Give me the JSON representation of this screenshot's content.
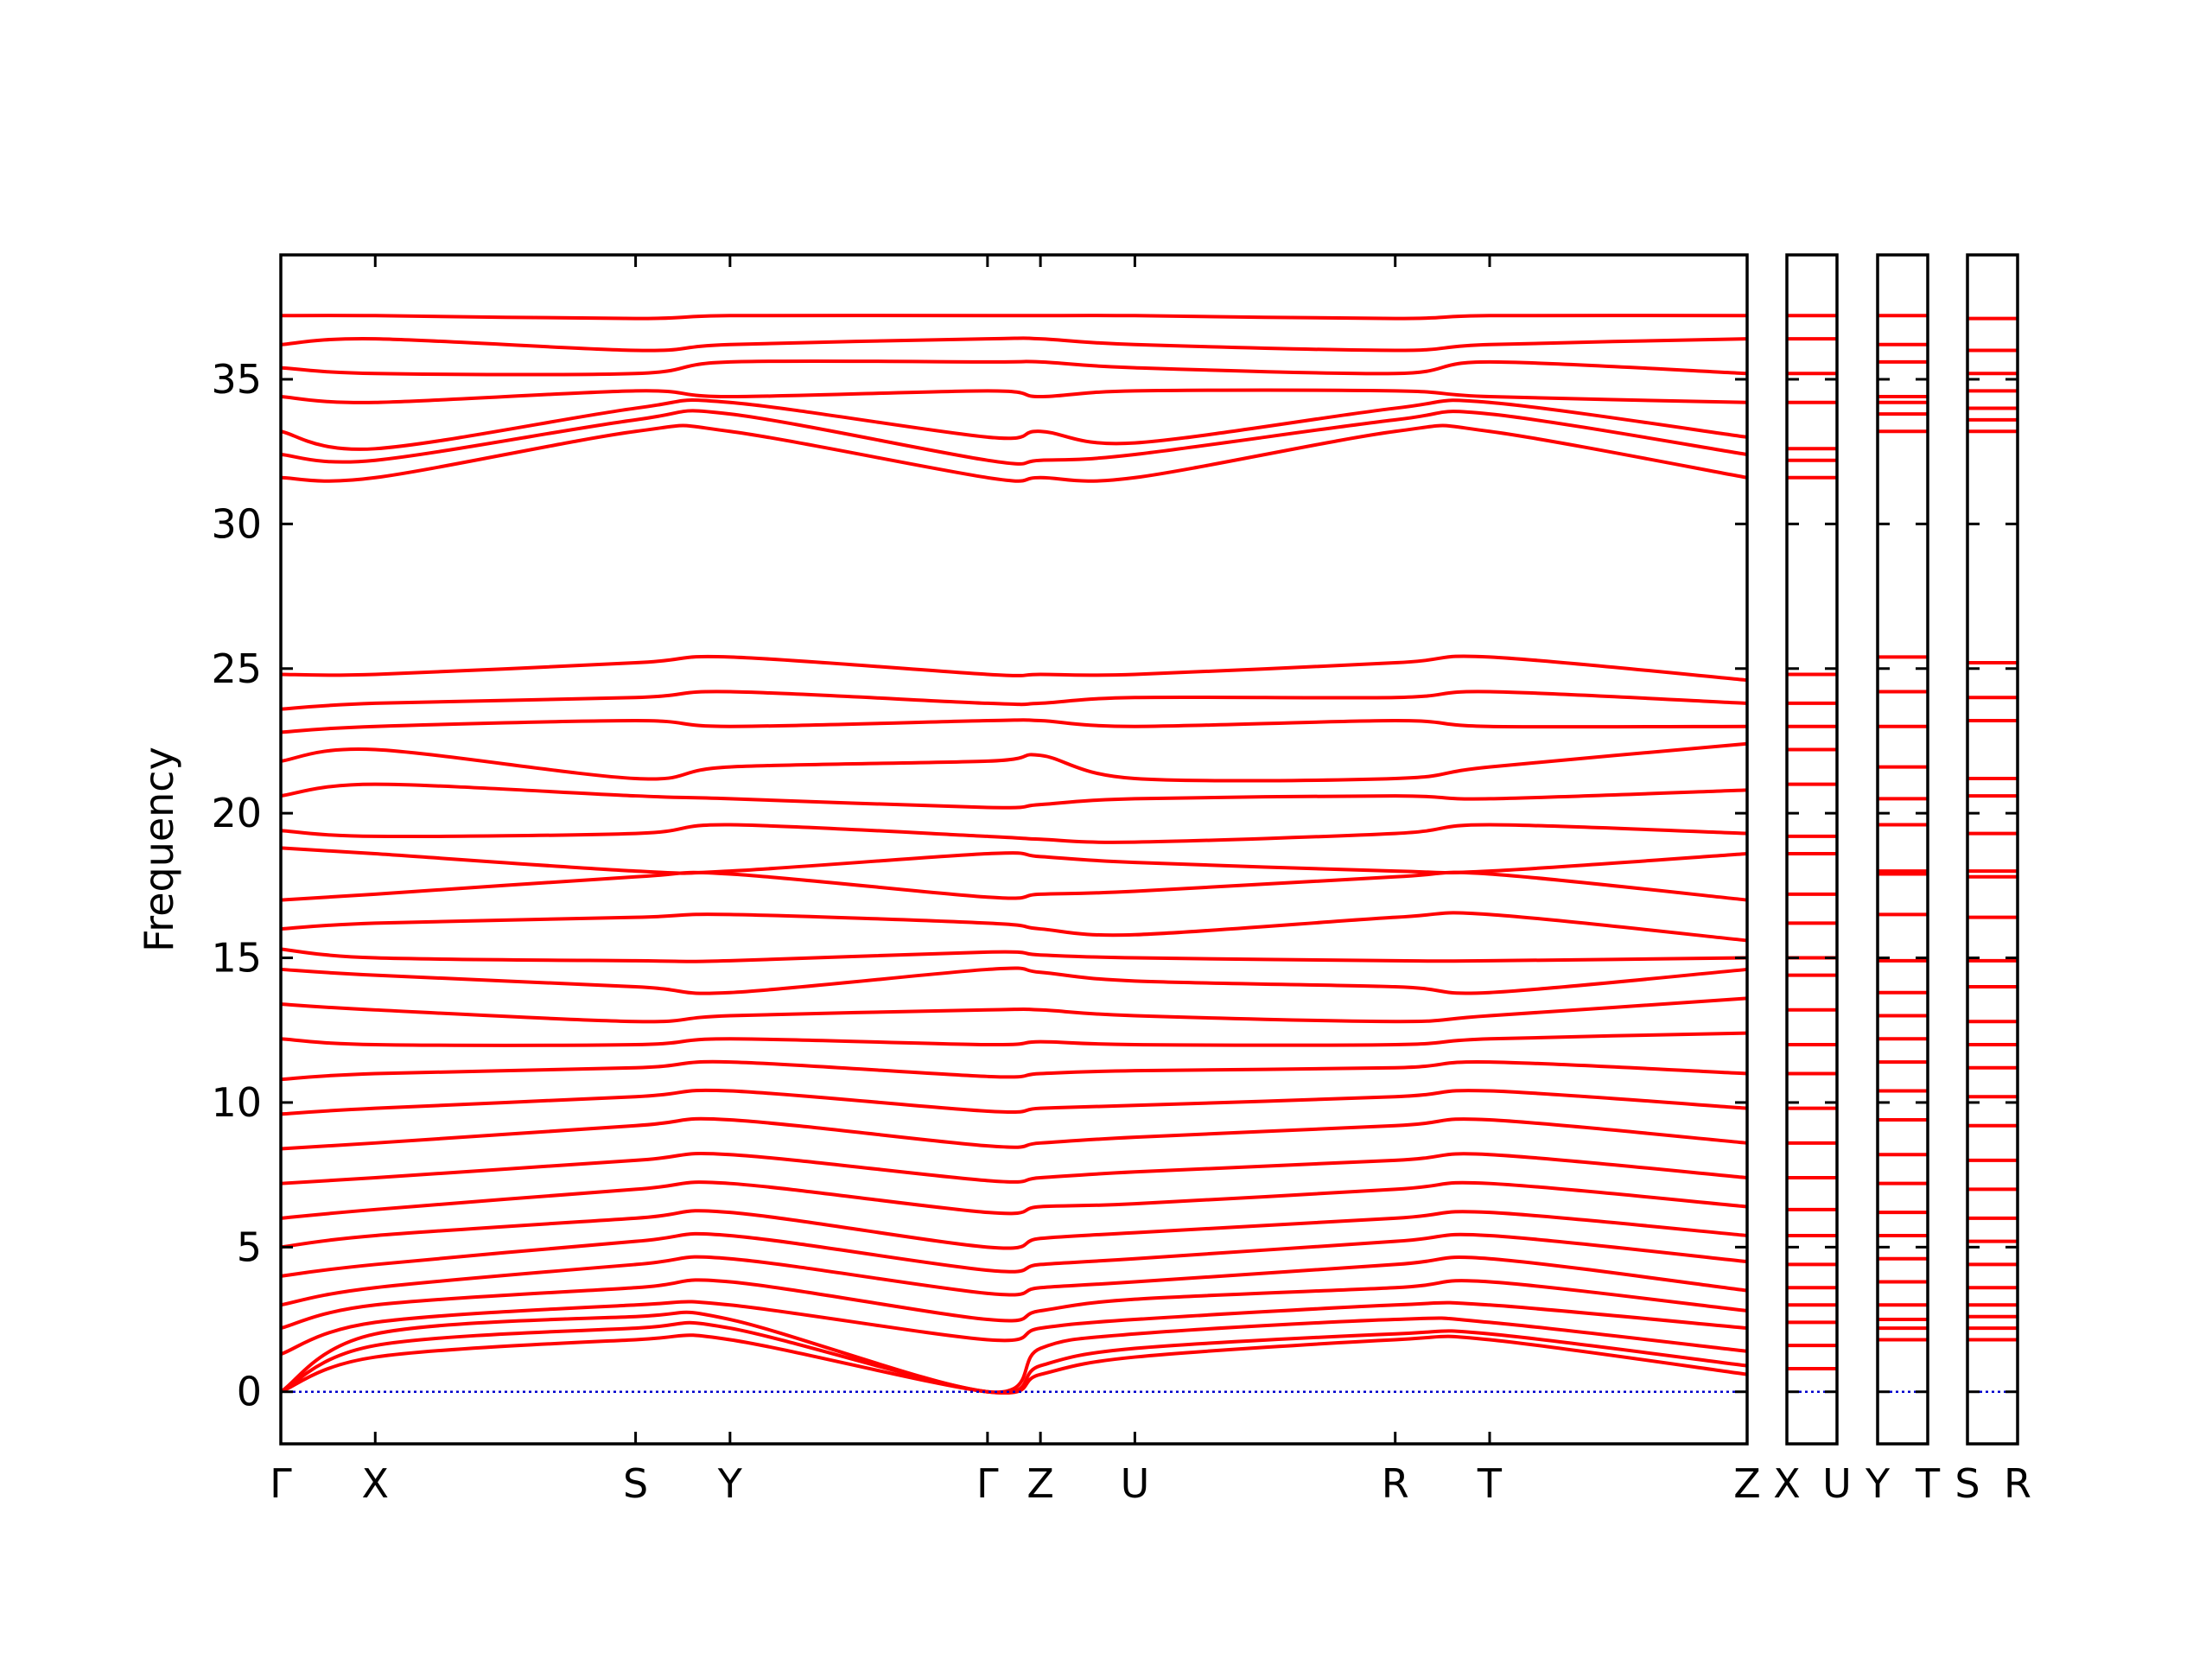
{
  "chart_data": [
    {
      "type": "line",
      "ylabel": "Frequency",
      "color": "#ff0000",
      "hline": 0,
      "hline_color": "#0000cc",
      "ylim": [
        -1.8,
        39.3
      ],
      "yticks": [
        0,
        5,
        10,
        15,
        20,
        25,
        30,
        35
      ],
      "xlim": [
        0,
        10.25
      ],
      "xticks": [
        {
          "value": 0,
          "label": "Γ"
        },
        {
          "value": 0.66,
          "label": "X"
        },
        {
          "value": 2.48,
          "label": "S"
        },
        {
          "value": 3.14,
          "label": "Y"
        },
        {
          "value": 4.94,
          "label": "Γ"
        },
        {
          "value": 5.31,
          "label": "Z"
        },
        {
          "value": 5.97,
          "label": "U"
        },
        {
          "value": 7.79,
          "label": "R"
        },
        {
          "value": 8.45,
          "label": "T"
        },
        {
          "value": 10.25,
          "label": "Z"
        }
      ],
      "x": [
        0,
        0.66,
        2.48,
        3.14,
        4.94,
        5.31,
        5.97,
        7.79,
        8.45,
        10.25
      ],
      "series": [
        {
          "values": [
            0,
            1.2,
            1.8,
            1.8,
            0,
            0.6,
            1.2,
            1.8,
            1.8,
            0.6
          ]
        },
        {
          "values": [
            0,
            1.6,
            2.2,
            2.2,
            0,
            0.9,
            1.5,
            2.0,
            2.0,
            0.9
          ]
        },
        {
          "values": [
            0,
            2.0,
            2.6,
            2.5,
            0,
            1.5,
            2.0,
            2.5,
            2.4,
            1.4
          ]
        },
        {
          "values": [
            1.3,
            2.4,
            3.0,
            3.0,
            1.8,
            2.2,
            2.5,
            3.0,
            3.0,
            2.2
          ]
        },
        {
          "values": [
            2.2,
            3.0,
            3.6,
            3.8,
            2.5,
            2.8,
            3.2,
            3.6,
            3.8,
            2.8
          ]
        },
        {
          "values": [
            3.0,
            3.6,
            4.4,
            4.6,
            3.4,
            3.6,
            3.8,
            4.4,
            4.6,
            3.5
          ]
        },
        {
          "values": [
            4.0,
            4.4,
            5.2,
            5.4,
            4.2,
            4.4,
            4.6,
            5.2,
            5.4,
            4.5
          ]
        },
        {
          "values": [
            5.0,
            5.4,
            6.0,
            6.2,
            5.0,
            5.3,
            5.5,
            6.0,
            6.2,
            5.4
          ]
        },
        {
          "values": [
            6.0,
            6.3,
            7.0,
            7.2,
            6.2,
            6.4,
            6.5,
            7.0,
            7.2,
            6.4
          ]
        },
        {
          "values": [
            7.2,
            7.4,
            8.0,
            8.2,
            7.3,
            7.4,
            7.6,
            8.0,
            8.2,
            7.4
          ]
        },
        {
          "values": [
            8.4,
            8.6,
            9.2,
            9.4,
            8.5,
            8.6,
            8.8,
            9.2,
            9.4,
            8.6
          ]
        },
        {
          "values": [
            9.6,
            9.8,
            10.2,
            10.4,
            9.7,
            9.8,
            9.9,
            10.2,
            10.4,
            9.8
          ]
        },
        {
          "values": [
            10.8,
            11.0,
            11.2,
            11.4,
            10.9,
            11.0,
            11.1,
            11.2,
            11.4,
            11.0
          ]
        },
        {
          "values": [
            12.2,
            12.0,
            12.0,
            12.2,
            12.0,
            12.1,
            12.0,
            12.0,
            12.2,
            12.4
          ]
        },
        {
          "values": [
            13.4,
            13.2,
            12.8,
            13.0,
            13.2,
            13.2,
            13.0,
            12.8,
            13.0,
            13.6
          ]
        },
        {
          "values": [
            14.6,
            14.4,
            14.0,
            13.8,
            14.6,
            14.5,
            14.2,
            14.0,
            13.8,
            14.6
          ]
        },
        {
          "values": [
            15.3,
            15.0,
            14.9,
            14.9,
            15.2,
            15.1,
            15.0,
            14.9,
            14.9,
            15.0
          ]
        },
        {
          "values": [
            16.0,
            16.2,
            16.4,
            16.5,
            16.2,
            16.0,
            15.8,
            16.4,
            16.5,
            15.6
          ]
        },
        {
          "values": [
            17.0,
            17.2,
            17.8,
            17.9,
            17.1,
            17.2,
            17.3,
            17.8,
            17.9,
            17.0
          ]
        },
        {
          "values": [
            18.8,
            18.6,
            18.0,
            18.0,
            18.6,
            18.5,
            18.3,
            18.0,
            18.0,
            18.6
          ]
        },
        {
          "values": [
            19.4,
            19.2,
            19.3,
            19.6,
            19.2,
            19.1,
            19.0,
            19.3,
            19.6,
            19.3
          ]
        },
        {
          "values": [
            20.6,
            21.0,
            20.6,
            20.5,
            20.2,
            20.3,
            20.5,
            20.6,
            20.5,
            20.8
          ]
        },
        {
          "values": [
            21.8,
            22.2,
            21.2,
            21.6,
            21.8,
            22.0,
            21.2,
            21.2,
            21.6,
            22.4
          ]
        },
        {
          "values": [
            22.8,
            23.0,
            23.2,
            23.0,
            23.2,
            23.2,
            23.0,
            23.2,
            23.0,
            23.0
          ]
        },
        {
          "values": [
            23.6,
            23.8,
            24.0,
            24.2,
            23.8,
            23.8,
            24.0,
            24.0,
            24.2,
            23.8
          ]
        },
        {
          "values": [
            24.8,
            24.8,
            25.2,
            25.4,
            24.8,
            24.8,
            24.8,
            25.2,
            25.4,
            24.6
          ]
        },
        {
          "values": [
            31.6,
            31.6,
            33.2,
            33.2,
            31.6,
            31.6,
            31.6,
            33.2,
            33.2,
            31.6
          ]
        },
        {
          "values": [
            32.4,
            32.2,
            33.6,
            33.8,
            32.2,
            32.2,
            32.4,
            33.6,
            33.8,
            32.4
          ]
        },
        {
          "values": [
            33.2,
            32.6,
            34.0,
            34.2,
            33.0,
            33.2,
            32.8,
            34.0,
            34.2,
            33.0
          ]
        },
        {
          "values": [
            34.4,
            34.2,
            34.6,
            34.4,
            34.6,
            34.4,
            34.6,
            34.6,
            34.4,
            34.2
          ]
        },
        {
          "values": [
            35.4,
            35.2,
            35.2,
            35.6,
            35.6,
            35.6,
            35.4,
            35.2,
            35.6,
            35.2
          ]
        },
        {
          "values": [
            36.2,
            36.4,
            36.0,
            36.2,
            36.4,
            36.4,
            36.2,
            36.0,
            36.2,
            36.4
          ]
        },
        {
          "values": [
            37.2,
            37.2,
            37.1,
            37.2,
            37.2,
            37.2,
            37.2,
            37.1,
            37.2,
            37.2
          ]
        }
      ]
    },
    {
      "type": "line",
      "xlim": [
        0,
        1
      ],
      "xticks": [
        {
          "value": 0,
          "label": "X"
        },
        {
          "value": 1,
          "label": "U"
        }
      ],
      "x": [
        0,
        1
      ],
      "series": [
        {
          "values": [
            0.8,
            0.8
          ]
        },
        {
          "values": [
            1.6,
            1.6
          ]
        },
        {
          "values": [
            2.4,
            2.4
          ]
        },
        {
          "values": [
            3.0,
            3.0
          ]
        },
        {
          "values": [
            3.6,
            3.6
          ]
        },
        {
          "values": [
            4.4,
            4.4
          ]
        },
        {
          "values": [
            5.4,
            5.4
          ]
        },
        {
          "values": [
            6.3,
            6.3
          ]
        },
        {
          "values": [
            7.4,
            7.4
          ]
        },
        {
          "values": [
            8.6,
            8.6
          ]
        },
        {
          "values": [
            9.8,
            9.8
          ]
        },
        {
          "values": [
            11.0,
            11.0
          ]
        },
        {
          "values": [
            12.0,
            12.0
          ]
        },
        {
          "values": [
            13.2,
            13.2
          ]
        },
        {
          "values": [
            14.4,
            14.4
          ]
        },
        {
          "values": [
            15.0,
            15.0
          ]
        },
        {
          "values": [
            16.2,
            16.2
          ]
        },
        {
          "values": [
            17.2,
            17.2
          ]
        },
        {
          "values": [
            18.6,
            18.6
          ]
        },
        {
          "values": [
            19.2,
            19.2
          ]
        },
        {
          "values": [
            21.0,
            21.0
          ]
        },
        {
          "values": [
            22.2,
            22.2
          ]
        },
        {
          "values": [
            23.0,
            23.0
          ]
        },
        {
          "values": [
            23.8,
            23.8
          ]
        },
        {
          "values": [
            24.8,
            24.8
          ]
        },
        {
          "values": [
            31.6,
            31.6
          ]
        },
        {
          "values": [
            32.2,
            32.2
          ]
        },
        {
          "values": [
            32.6,
            32.6
          ]
        },
        {
          "values": [
            34.2,
            34.2
          ]
        },
        {
          "values": [
            35.2,
            35.2
          ]
        },
        {
          "values": [
            36.4,
            36.4
          ]
        },
        {
          "values": [
            37.2,
            37.2
          ]
        }
      ]
    },
    {
      "type": "line",
      "xlim": [
        0,
        1
      ],
      "xticks": [
        {
          "value": 0,
          "label": "Y"
        },
        {
          "value": 1,
          "label": "T"
        }
      ],
      "x": [
        0,
        1
      ],
      "series": [
        {
          "values": [
            1.8,
            1.8
          ]
        },
        {
          "values": [
            2.2,
            2.2
          ]
        },
        {
          "values": [
            2.5,
            2.5
          ]
        },
        {
          "values": [
            3.0,
            3.0
          ]
        },
        {
          "values": [
            3.8,
            3.8
          ]
        },
        {
          "values": [
            4.6,
            4.6
          ]
        },
        {
          "values": [
            5.4,
            5.4
          ]
        },
        {
          "values": [
            6.2,
            6.2
          ]
        },
        {
          "values": [
            7.2,
            7.2
          ]
        },
        {
          "values": [
            8.2,
            8.2
          ]
        },
        {
          "values": [
            9.4,
            9.4
          ]
        },
        {
          "values": [
            10.4,
            10.4
          ]
        },
        {
          "values": [
            11.4,
            11.4
          ]
        },
        {
          "values": [
            12.2,
            12.2
          ]
        },
        {
          "values": [
            13.0,
            13.0
          ]
        },
        {
          "values": [
            13.8,
            13.8
          ]
        },
        {
          "values": [
            14.9,
            14.9
          ]
        },
        {
          "values": [
            16.5,
            16.5
          ]
        },
        {
          "values": [
            17.9,
            17.9
          ]
        },
        {
          "values": [
            18.0,
            18.0
          ]
        },
        {
          "values": [
            19.6,
            19.6
          ]
        },
        {
          "values": [
            20.5,
            20.5
          ]
        },
        {
          "values": [
            21.6,
            21.6
          ]
        },
        {
          "values": [
            23.0,
            23.0
          ]
        },
        {
          "values": [
            24.2,
            24.2
          ]
        },
        {
          "values": [
            25.4,
            25.4
          ]
        },
        {
          "values": [
            33.2,
            33.2
          ]
        },
        {
          "values": [
            33.8,
            33.8
          ]
        },
        {
          "values": [
            34.2,
            34.2
          ]
        },
        {
          "values": [
            34.4,
            34.4
          ]
        },
        {
          "values": [
            35.6,
            35.6
          ]
        },
        {
          "values": [
            36.2,
            36.2
          ]
        },
        {
          "values": [
            37.2,
            37.2
          ]
        }
      ]
    },
    {
      "type": "line",
      "xlim": [
        0,
        1
      ],
      "xticks": [
        {
          "value": 0,
          "label": "S"
        },
        {
          "value": 1,
          "label": "R"
        }
      ],
      "x": [
        0,
        1
      ],
      "series": [
        {
          "values": [
            1.8,
            1.8
          ]
        },
        {
          "values": [
            2.2,
            2.2
          ]
        },
        {
          "values": [
            2.6,
            2.6
          ]
        },
        {
          "values": [
            3.0,
            3.0
          ]
        },
        {
          "values": [
            3.6,
            3.6
          ]
        },
        {
          "values": [
            4.4,
            4.4
          ]
        },
        {
          "values": [
            5.2,
            5.2
          ]
        },
        {
          "values": [
            6.0,
            6.0
          ]
        },
        {
          "values": [
            7.0,
            7.0
          ]
        },
        {
          "values": [
            8.0,
            8.0
          ]
        },
        {
          "values": [
            9.2,
            9.2
          ]
        },
        {
          "values": [
            10.2,
            10.2
          ]
        },
        {
          "values": [
            11.2,
            11.2
          ]
        },
        {
          "values": [
            12.0,
            12.0
          ]
        },
        {
          "values": [
            12.8,
            12.8
          ]
        },
        {
          "values": [
            14.0,
            14.0
          ]
        },
        {
          "values": [
            14.9,
            14.9
          ]
        },
        {
          "values": [
            16.4,
            16.4
          ]
        },
        {
          "values": [
            17.8,
            17.8
          ]
        },
        {
          "values": [
            18.0,
            18.0
          ]
        },
        {
          "values": [
            19.3,
            19.3
          ]
        },
        {
          "values": [
            20.6,
            20.6
          ]
        },
        {
          "values": [
            21.2,
            21.2
          ]
        },
        {
          "values": [
            23.2,
            23.2
          ]
        },
        {
          "values": [
            24.0,
            24.0
          ]
        },
        {
          "values": [
            25.2,
            25.2
          ]
        },
        {
          "values": [
            33.2,
            33.2
          ]
        },
        {
          "values": [
            33.6,
            33.6
          ]
        },
        {
          "values": [
            34.0,
            34.0
          ]
        },
        {
          "values": [
            34.6,
            34.6
          ]
        },
        {
          "values": [
            35.2,
            35.2
          ]
        },
        {
          "values": [
            36.0,
            36.0
          ]
        },
        {
          "values": [
            37.1,
            37.1
          ]
        }
      ]
    }
  ]
}
